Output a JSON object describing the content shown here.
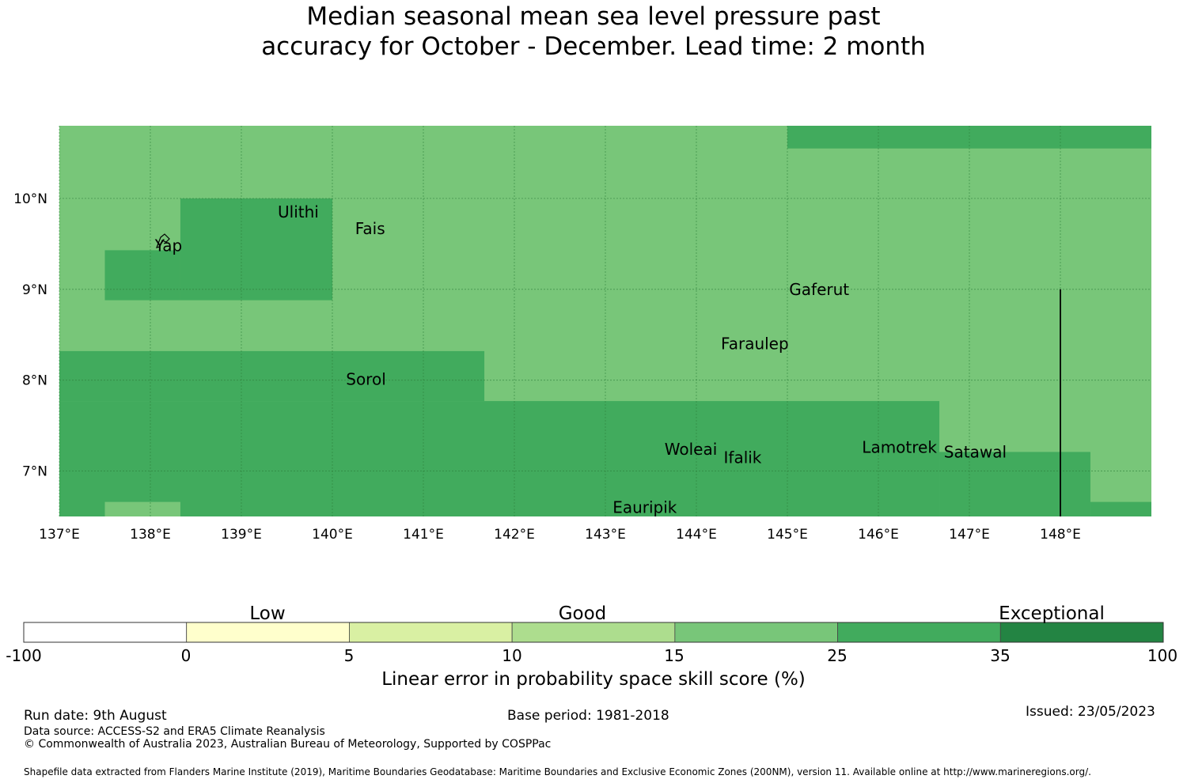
{
  "title_line1": "Median seasonal mean sea level pressure past",
  "title_line2": "accuracy for October - December. Lead time: 2 month",
  "map": {
    "lon_range": [
      137,
      149
    ],
    "lat_range": [
      6.5,
      10.8
    ],
    "lon_ticks": [
      "137°E",
      "138°E",
      "139°E",
      "140°E",
      "141°E",
      "142°E",
      "143°E",
      "144°E",
      "145°E",
      "146°E",
      "147°E",
      "148°E"
    ],
    "lat_ticks": [
      "10°N",
      "9°N",
      "8°N",
      "7°N"
    ],
    "background_color": "#78c679",
    "skill_25_35_color": "#41ab5d",
    "skill_25_35_regions": [
      {
        "lon": [
          145,
          149
        ],
        "lat": [
          10.55,
          10.8
        ]
      },
      {
        "lon": [
          138.33,
          140
        ],
        "lat": [
          8.88,
          10
        ]
      },
      {
        "lon": [
          137.5,
          138.33
        ],
        "lat": [
          8.88,
          9.43
        ]
      },
      {
        "lon": [
          137,
          141.67
        ],
        "lat": [
          7.77,
          8.32
        ]
      },
      {
        "lon": [
          137,
          146.67
        ],
        "lat": [
          6.5,
          7.77
        ]
      },
      {
        "lon": [
          146.67,
          148.33
        ],
        "lat": [
          6.5,
          7.21
        ]
      },
      {
        "lon": [
          148.33,
          149
        ],
        "lat": [
          6.5,
          6.66
        ]
      }
    ],
    "skill_15_25_patches": [
      {
        "lon": [
          137.5,
          138.33
        ],
        "lat": [
          6.5,
          6.66
        ]
      }
    ],
    "islands": [
      {
        "name": "Ulithi",
        "lon": 139.4,
        "lat": 9.85
      },
      {
        "name": "Fais",
        "lon": 140.25,
        "lat": 9.67
      },
      {
        "name": "Yap",
        "lon": 138.05,
        "lat": 9.48
      },
      {
        "name": "Gaferut",
        "lon": 145.02,
        "lat": 9.0
      },
      {
        "name": "Faraulep",
        "lon": 144.27,
        "lat": 8.4
      },
      {
        "name": "Sorol",
        "lon": 140.15,
        "lat": 8.01
      },
      {
        "name": "Woleai",
        "lon": 143.65,
        "lat": 7.24
      },
      {
        "name": "Ifalik",
        "lon": 144.3,
        "lat": 7.15
      },
      {
        "name": "Lamotrek",
        "lon": 145.82,
        "lat": 7.26
      },
      {
        "name": "Satawal",
        "lon": 146.72,
        "lat": 7.21
      },
      {
        "name": "Eauripik",
        "lon": 143.08,
        "lat": 6.6
      }
    ],
    "boundary_line": {
      "lon": 148,
      "lat": [
        6.5,
        9.0
      ]
    }
  },
  "legend": {
    "bands": [
      "Low",
      "Good",
      "Exceptional"
    ],
    "ticks": [
      "-100",
      "0",
      "5",
      "10",
      "15",
      "25",
      "35",
      "100"
    ],
    "colors": [
      "#ffffff",
      "#ffffcc",
      "#d9f0a3",
      "#addd8e",
      "#78c679",
      "#41ab5d",
      "#238443"
    ],
    "label": "Linear error in probability space skill score (%)"
  },
  "footer": {
    "run_date": "Run date: 9th August",
    "base_period": "Base period: 1981-2018",
    "issued": "Issued: 23/05/2023",
    "data_source": "Data source: ACCESS-S2 and ERA5 Climate Reanalysis",
    "copyright": "© Commonwealth of Australia 2023, Australian Bureau of Meteorology, Supported by COSPPac",
    "shapefile": "Shapefile data extracted from Flanders Marine Institute (2019), Maritime Boundaries Geodatabase: Maritime Boundaries and Exclusive Economic Zones (200NM), version 11. Available online at http://www.marineregions.org/."
  }
}
